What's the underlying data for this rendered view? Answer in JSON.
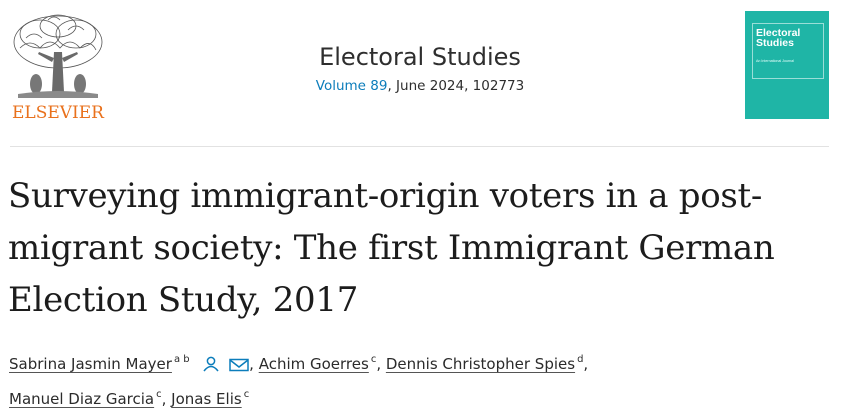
{
  "publisher": {
    "name": "ELSEVIER"
  },
  "journal": {
    "name": "Electoral Studies",
    "volume_link": "Volume 89",
    "issue_info": ", June 2024, 102773"
  },
  "cover": {
    "title_line1": "Electoral",
    "title_line2": "Studies",
    "subtitle": "An International Journal"
  },
  "article": {
    "title": "Surveying immigrant-origin voters in a post-migrant society: The first Immigrant German Election Study, 2017"
  },
  "authors": [
    {
      "name": "Sabrina Jasmin Mayer",
      "affiliations": "a b"
    },
    {
      "name": "Achim Goerres",
      "affiliations": "c"
    },
    {
      "name": "Dennis Christopher Spies",
      "affiliations": "d"
    },
    {
      "name": "Manuel Diaz Garcia",
      "affiliations": "c"
    },
    {
      "name": "Jonas Elis",
      "affiliations": "c"
    }
  ],
  "colors": {
    "publisher_orange": "#e9711c",
    "link_blue": "#0c7dbb",
    "cover_teal": "#1fb5a6"
  }
}
